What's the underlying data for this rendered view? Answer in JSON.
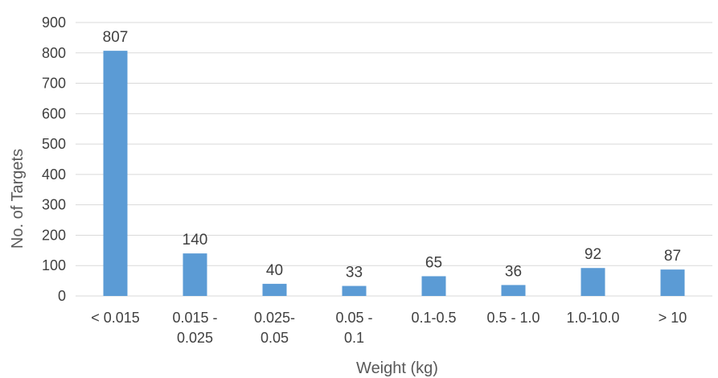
{
  "chart_data": {
    "type": "bar",
    "xlabel": "Weight (kg)",
    "ylabel": "No. of Targets",
    "ylim": [
      0,
      900
    ],
    "yticks": [
      0,
      100,
      200,
      300,
      400,
      500,
      600,
      700,
      800,
      900
    ],
    "grid": "horizontal",
    "bar_color": "#5b9bd5",
    "gridline_color": "#d9d9d9",
    "categories": [
      [
        "< 0.015"
      ],
      [
        "0.015 -",
        "0.025"
      ],
      [
        "0.025-",
        "0.05"
      ],
      [
        "0.05 -",
        "0.1"
      ],
      [
        "0.1-0.5"
      ],
      [
        "0.5 - 1.0"
      ],
      [
        "1.0-10.0"
      ],
      [
        "> 10"
      ]
    ],
    "values": [
      807,
      140,
      40,
      33,
      65,
      36,
      92,
      87
    ]
  }
}
